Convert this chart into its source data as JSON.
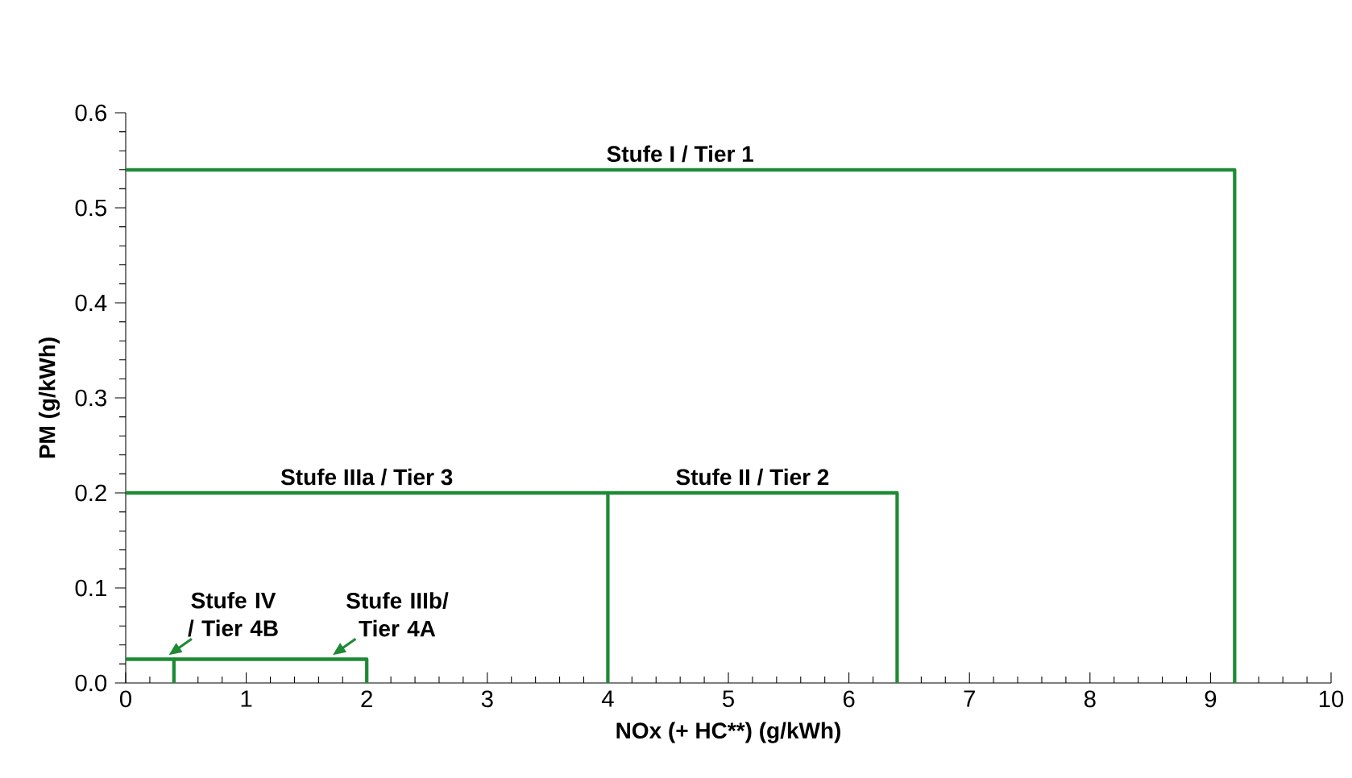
{
  "chart_data": {
    "type": "line",
    "xlabel": "NOx (+ HC**) (g/kWh)",
    "ylabel": "PM (g/kWh)",
    "xlim": [
      0,
      10
    ],
    "ylim": [
      0,
      0.6
    ],
    "xticks": [
      0,
      1,
      2,
      3,
      4,
      5,
      6,
      7,
      8,
      9,
      10
    ],
    "yticks": [
      {
        "value": 0,
        "label": "0.0"
      },
      0.1,
      0.2,
      0.3,
      0.4,
      0.5,
      0.6
    ],
    "grid": false,
    "legend": false,
    "series": [
      {
        "name": "Stufe I / Tier 1",
        "color": "#1e8a35",
        "x": [
          0,
          9.2,
          9.2
        ],
        "values": [
          0.54,
          0.54,
          0
        ]
      },
      {
        "name": "Stufe II / Tier 2",
        "color": "#1e8a35",
        "x": [
          4,
          4,
          6.4,
          6.4
        ],
        "values": [
          0,
          0.2,
          0.2,
          0
        ]
      },
      {
        "name": "Stufe IIIa / Tier 3",
        "color": "#1e8a35",
        "x": [
          0,
          4
        ],
        "values": [
          0.2,
          0.2
        ]
      },
      {
        "name": "Stufe IIIb/ Tier 4A",
        "color": "#1e8a35",
        "x": [
          0.4,
          2,
          2
        ],
        "values": [
          0.025,
          0.025,
          0
        ]
      },
      {
        "name": "Stufe IV / Tier 4B",
        "color": "#1e8a35",
        "x": [
          0,
          0.4,
          0.4
        ],
        "values": [
          0.025,
          0.025,
          0
        ]
      }
    ]
  }
}
